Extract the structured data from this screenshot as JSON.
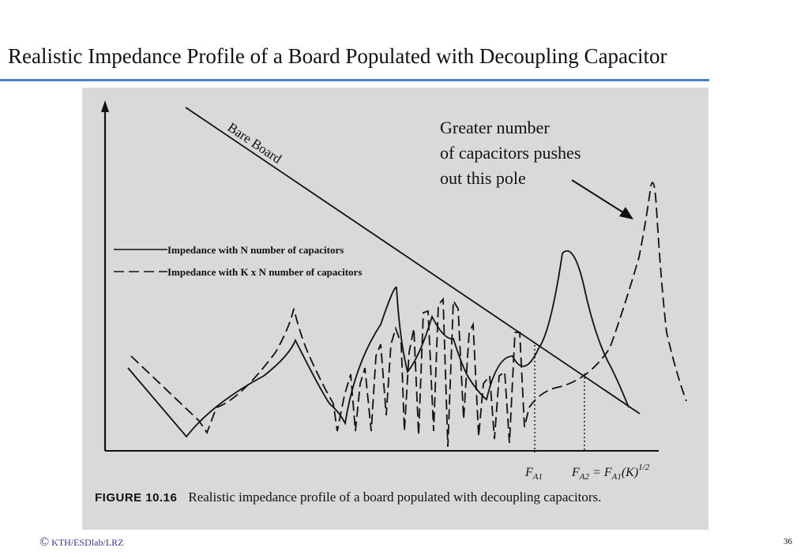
{
  "slide": {
    "title": "Realistic Impedance Profile of a Board Populated with Decoupling Capacitor",
    "page_number": "36",
    "footer_symbol": "©",
    "footer_text": "KTH/ESDlab/LRZ"
  },
  "figure": {
    "bare_board_label": "Bare Board",
    "annotation_lines": [
      "Greater number",
      "of capacitors pushes",
      "out this pole"
    ],
    "legend": {
      "solid": "Impedance with N number of  capacitors",
      "dashed": "Impedance with K x N number of capacitors"
    },
    "fa1_label": "F",
    "fa1_sub": "A1",
    "fa2_label": "F",
    "fa2_sub": "A2",
    "fa2_eq": " = F",
    "fa2_eq_sub": "A1",
    "fa2_paren": "(K)",
    "fa2_exp": "1/2",
    "caption_label": "FIGURE 10.16",
    "caption_text": "Realistic impedance profile of a board populated with decoupling capacitors.",
    "colors": {
      "background": "#d9d9d9",
      "ink": "#111111",
      "title_rule": "#4a7fd1"
    }
  }
}
